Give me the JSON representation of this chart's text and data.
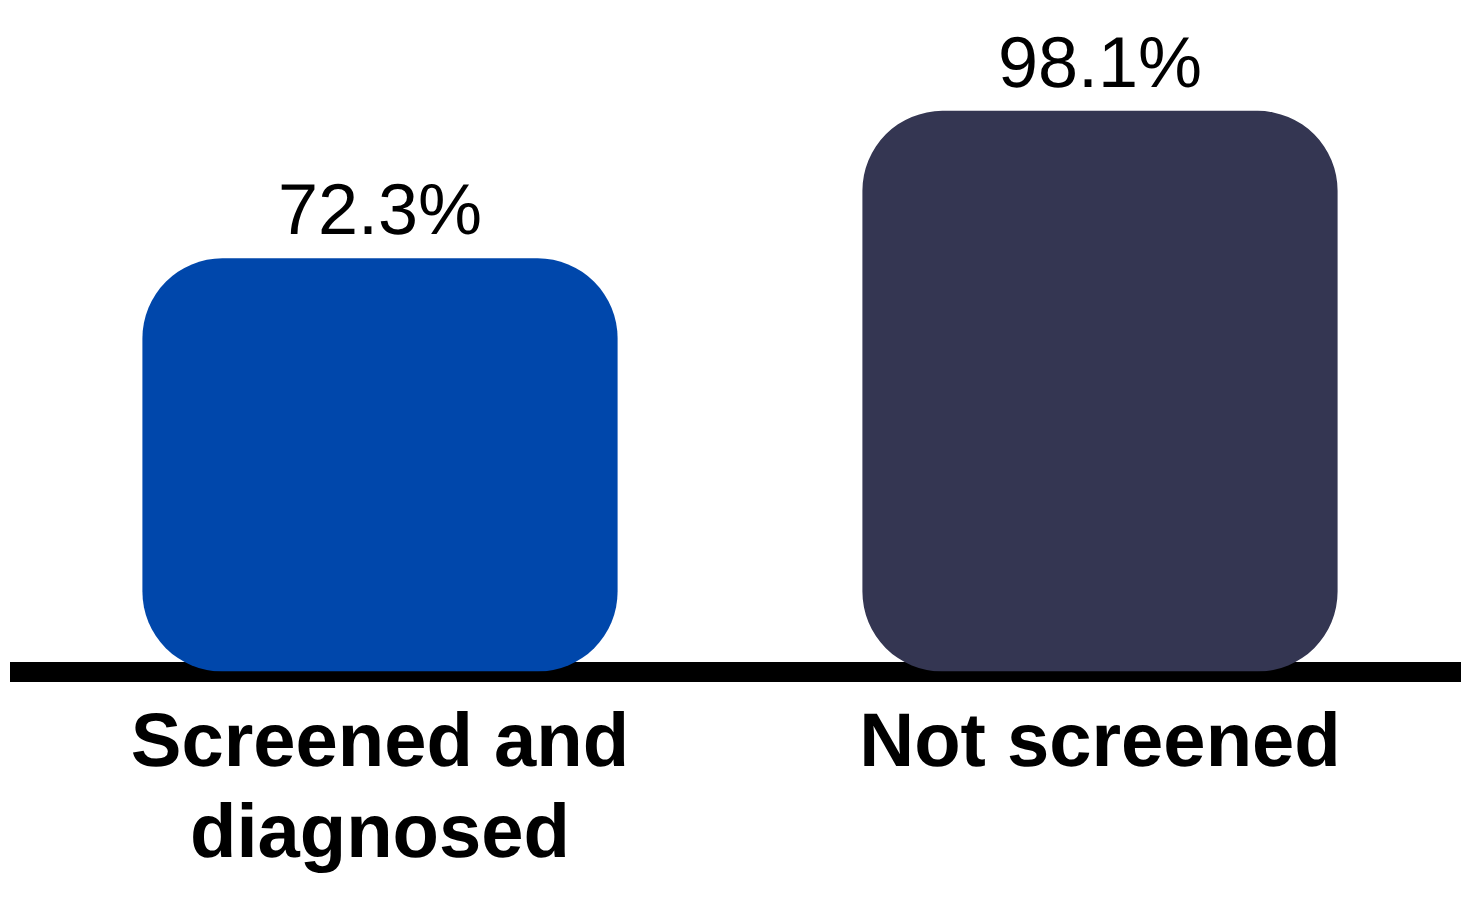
{
  "chart_data": {
    "type": "bar",
    "categories": [
      "Screened and diagnosed",
      "Not screened"
    ],
    "values": [
      72.3,
      98.1
    ],
    "colors": [
      "#0047ab",
      "#343652"
    ],
    "value_labels": [
      "72.3%",
      "98.1%"
    ],
    "grid": false,
    "legend": false
  }
}
